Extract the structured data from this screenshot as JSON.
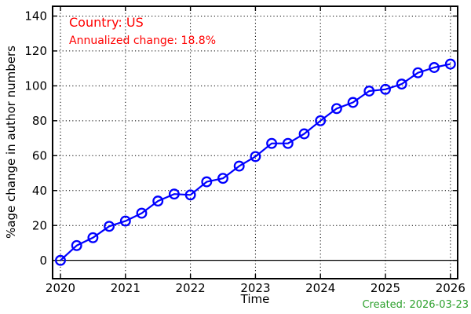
{
  "chart_data": {
    "type": "line",
    "x": [
      2020.0,
      2020.25,
      2020.5,
      2020.75,
      2021.0,
      2021.25,
      2021.5,
      2021.75,
      2022.0,
      2022.25,
      2022.5,
      2022.75,
      2023.0,
      2023.25,
      2023.5,
      2023.75,
      2024.0,
      2024.25,
      2024.5,
      2024.75,
      2025.0,
      2025.25,
      2025.5,
      2025.75,
      2026.0
    ],
    "values": [
      0,
      8.5,
      13,
      19.5,
      22.5,
      27,
      34,
      38,
      37.5,
      45,
      47,
      54,
      59.5,
      67,
      67,
      72.5,
      80,
      87,
      90.5,
      97,
      98,
      101,
      107.5,
      110.5,
      112.5
    ],
    "title": "",
    "xlabel": "Time",
    "ylabel": "%age change in author numbers",
    "xticks": [
      2020,
      2021,
      2022,
      2023,
      2024,
      2025,
      2026
    ],
    "xticklabels": [
      "2020",
      "2021",
      "2022",
      "2023",
      "2024",
      "2025",
      "2026"
    ],
    "yticks": [
      0,
      20,
      40,
      60,
      80,
      100,
      120,
      140
    ],
    "yticklabels": [
      "0",
      "20",
      "40",
      "60",
      "80",
      "100",
      "120",
      "140"
    ],
    "xlim": [
      2019.879,
      2026.111
    ],
    "ylim": [
      -10.5,
      145.6
    ],
    "grid": "dotted",
    "zero_line": true,
    "line_color": "#0000ff",
    "marker": "open-circle",
    "legend": "none"
  },
  "annotations": {
    "country": "Country: US",
    "annualized": "Annualized change: 18.8%",
    "color": "#ff0000"
  },
  "footer": {
    "created": "Created: 2026-03-23",
    "color": "#2ca02c"
  }
}
